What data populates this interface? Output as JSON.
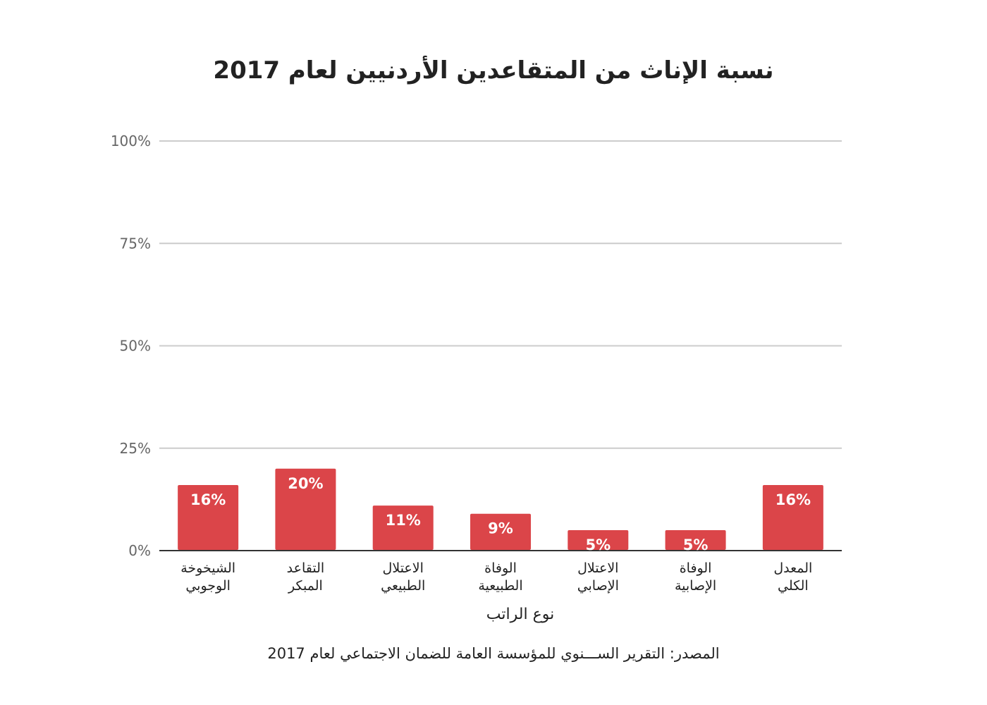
{
  "chart_data": {
    "type": "bar",
    "title": "نسبة الإناث من المتقاعدين الأردنيين لعام 2017",
    "xlabel": "نوع الراتب",
    "ylabel": "",
    "categories": [
      [
        "الشيخوخة",
        "الوجوبي"
      ],
      [
        "التقاعد",
        "المبكر"
      ],
      [
        "الاعتلال",
        "الطبيعي"
      ],
      [
        "الوفاة",
        "الطبيعية"
      ],
      [
        "الاعتلال",
        "الإصابي"
      ],
      [
        "الوفاة",
        "الإصابية"
      ],
      [
        "المعدل",
        "الكلي"
      ]
    ],
    "values": [
      16,
      20,
      11,
      9,
      5,
      5,
      16
    ],
    "data_labels": [
      "16%",
      "20%",
      "11%",
      "9%",
      "5%",
      "5%",
      "16%"
    ],
    "ylim": [
      0,
      100
    ],
    "yticks": [
      0,
      25,
      50,
      75,
      100
    ],
    "ytick_labels": [
      "0%",
      "25%",
      "50%",
      "75%",
      "100%"
    ],
    "grid": true,
    "legend": "none",
    "colors": {
      "bar": "#db4549",
      "grid": "#cccccc",
      "axis": "#333333",
      "tick_text": "#666666",
      "label_text": "#222222",
      "bar_label": "#ffffff"
    }
  },
  "source": "المصدر: التقرير الســـنوي للمؤسسة العامة للضمان الاجتماعي لعام 2017"
}
